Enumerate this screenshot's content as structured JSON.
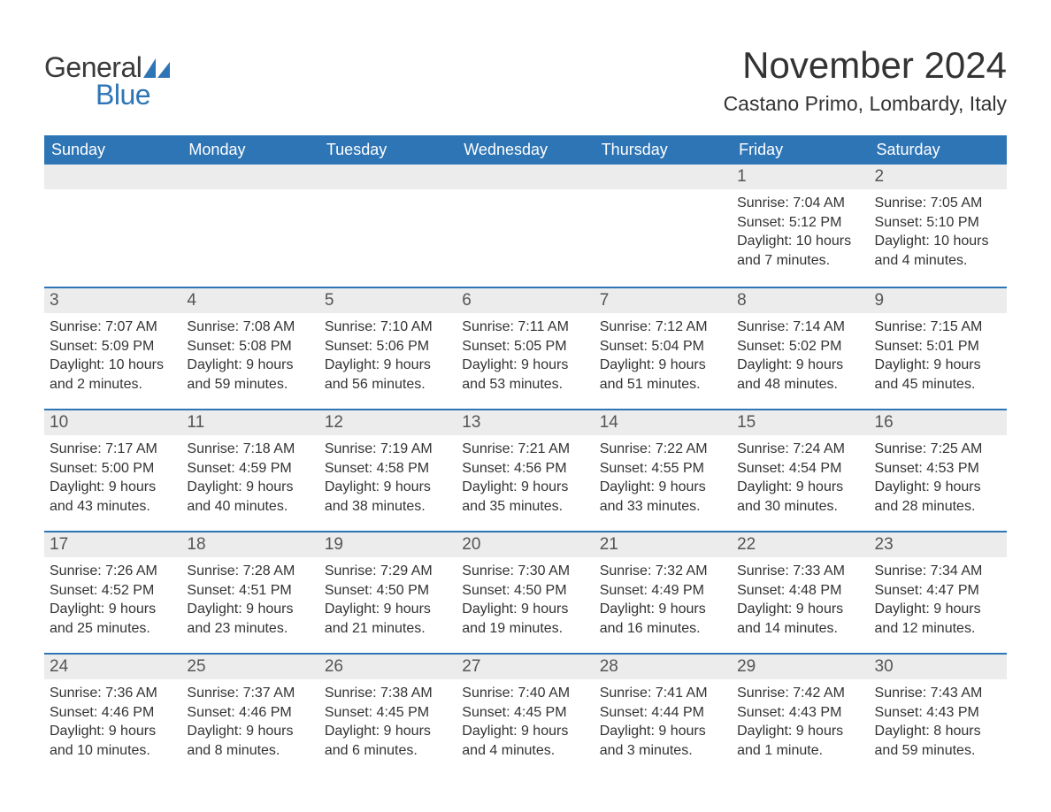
{
  "logo": {
    "text1": "General",
    "text2": "Blue",
    "shape_color": "#2e75b6"
  },
  "title": "November 2024",
  "location": "Castano Primo, Lombardy, Italy",
  "colors": {
    "header_bg": "#2e75b6",
    "header_text": "#ffffff",
    "row_border": "#2e75b6",
    "daynum_bg": "#ececec",
    "body_text": "#333333"
  },
  "weekdays": [
    "Sunday",
    "Monday",
    "Tuesday",
    "Wednesday",
    "Thursday",
    "Friday",
    "Saturday"
  ],
  "weeks": [
    [
      {
        "empty": true
      },
      {
        "empty": true
      },
      {
        "empty": true
      },
      {
        "empty": true
      },
      {
        "empty": true
      },
      {
        "day": "1",
        "sunrise": "Sunrise: 7:04 AM",
        "sunset": "Sunset: 5:12 PM",
        "daylight1": "Daylight: 10 hours",
        "daylight2": "and 7 minutes."
      },
      {
        "day": "2",
        "sunrise": "Sunrise: 7:05 AM",
        "sunset": "Sunset: 5:10 PM",
        "daylight1": "Daylight: 10 hours",
        "daylight2": "and 4 minutes."
      }
    ],
    [
      {
        "day": "3",
        "sunrise": "Sunrise: 7:07 AM",
        "sunset": "Sunset: 5:09 PM",
        "daylight1": "Daylight: 10 hours",
        "daylight2": "and 2 minutes."
      },
      {
        "day": "4",
        "sunrise": "Sunrise: 7:08 AM",
        "sunset": "Sunset: 5:08 PM",
        "daylight1": "Daylight: 9 hours",
        "daylight2": "and 59 minutes."
      },
      {
        "day": "5",
        "sunrise": "Sunrise: 7:10 AM",
        "sunset": "Sunset: 5:06 PM",
        "daylight1": "Daylight: 9 hours",
        "daylight2": "and 56 minutes."
      },
      {
        "day": "6",
        "sunrise": "Sunrise: 7:11 AM",
        "sunset": "Sunset: 5:05 PM",
        "daylight1": "Daylight: 9 hours",
        "daylight2": "and 53 minutes."
      },
      {
        "day": "7",
        "sunrise": "Sunrise: 7:12 AM",
        "sunset": "Sunset: 5:04 PM",
        "daylight1": "Daylight: 9 hours",
        "daylight2": "and 51 minutes."
      },
      {
        "day": "8",
        "sunrise": "Sunrise: 7:14 AM",
        "sunset": "Sunset: 5:02 PM",
        "daylight1": "Daylight: 9 hours",
        "daylight2": "and 48 minutes."
      },
      {
        "day": "9",
        "sunrise": "Sunrise: 7:15 AM",
        "sunset": "Sunset: 5:01 PM",
        "daylight1": "Daylight: 9 hours",
        "daylight2": "and 45 minutes."
      }
    ],
    [
      {
        "day": "10",
        "sunrise": "Sunrise: 7:17 AM",
        "sunset": "Sunset: 5:00 PM",
        "daylight1": "Daylight: 9 hours",
        "daylight2": "and 43 minutes."
      },
      {
        "day": "11",
        "sunrise": "Sunrise: 7:18 AM",
        "sunset": "Sunset: 4:59 PM",
        "daylight1": "Daylight: 9 hours",
        "daylight2": "and 40 minutes."
      },
      {
        "day": "12",
        "sunrise": "Sunrise: 7:19 AM",
        "sunset": "Sunset: 4:58 PM",
        "daylight1": "Daylight: 9 hours",
        "daylight2": "and 38 minutes."
      },
      {
        "day": "13",
        "sunrise": "Sunrise: 7:21 AM",
        "sunset": "Sunset: 4:56 PM",
        "daylight1": "Daylight: 9 hours",
        "daylight2": "and 35 minutes."
      },
      {
        "day": "14",
        "sunrise": "Sunrise: 7:22 AM",
        "sunset": "Sunset: 4:55 PM",
        "daylight1": "Daylight: 9 hours",
        "daylight2": "and 33 minutes."
      },
      {
        "day": "15",
        "sunrise": "Sunrise: 7:24 AM",
        "sunset": "Sunset: 4:54 PM",
        "daylight1": "Daylight: 9 hours",
        "daylight2": "and 30 minutes."
      },
      {
        "day": "16",
        "sunrise": "Sunrise: 7:25 AM",
        "sunset": "Sunset: 4:53 PM",
        "daylight1": "Daylight: 9 hours",
        "daylight2": "and 28 minutes."
      }
    ],
    [
      {
        "day": "17",
        "sunrise": "Sunrise: 7:26 AM",
        "sunset": "Sunset: 4:52 PM",
        "daylight1": "Daylight: 9 hours",
        "daylight2": "and 25 minutes."
      },
      {
        "day": "18",
        "sunrise": "Sunrise: 7:28 AM",
        "sunset": "Sunset: 4:51 PM",
        "daylight1": "Daylight: 9 hours",
        "daylight2": "and 23 minutes."
      },
      {
        "day": "19",
        "sunrise": "Sunrise: 7:29 AM",
        "sunset": "Sunset: 4:50 PM",
        "daylight1": "Daylight: 9 hours",
        "daylight2": "and 21 minutes."
      },
      {
        "day": "20",
        "sunrise": "Sunrise: 7:30 AM",
        "sunset": "Sunset: 4:50 PM",
        "daylight1": "Daylight: 9 hours",
        "daylight2": "and 19 minutes."
      },
      {
        "day": "21",
        "sunrise": "Sunrise: 7:32 AM",
        "sunset": "Sunset: 4:49 PM",
        "daylight1": "Daylight: 9 hours",
        "daylight2": "and 16 minutes."
      },
      {
        "day": "22",
        "sunrise": "Sunrise: 7:33 AM",
        "sunset": "Sunset: 4:48 PM",
        "daylight1": "Daylight: 9 hours",
        "daylight2": "and 14 minutes."
      },
      {
        "day": "23",
        "sunrise": "Sunrise: 7:34 AM",
        "sunset": "Sunset: 4:47 PM",
        "daylight1": "Daylight: 9 hours",
        "daylight2": "and 12 minutes."
      }
    ],
    [
      {
        "day": "24",
        "sunrise": "Sunrise: 7:36 AM",
        "sunset": "Sunset: 4:46 PM",
        "daylight1": "Daylight: 9 hours",
        "daylight2": "and 10 minutes."
      },
      {
        "day": "25",
        "sunrise": "Sunrise: 7:37 AM",
        "sunset": "Sunset: 4:46 PM",
        "daylight1": "Daylight: 9 hours",
        "daylight2": "and 8 minutes."
      },
      {
        "day": "26",
        "sunrise": "Sunrise: 7:38 AM",
        "sunset": "Sunset: 4:45 PM",
        "daylight1": "Daylight: 9 hours",
        "daylight2": "and 6 minutes."
      },
      {
        "day": "27",
        "sunrise": "Sunrise: 7:40 AM",
        "sunset": "Sunset: 4:45 PM",
        "daylight1": "Daylight: 9 hours",
        "daylight2": "and 4 minutes."
      },
      {
        "day": "28",
        "sunrise": "Sunrise: 7:41 AM",
        "sunset": "Sunset: 4:44 PM",
        "daylight1": "Daylight: 9 hours",
        "daylight2": "and 3 minutes."
      },
      {
        "day": "29",
        "sunrise": "Sunrise: 7:42 AM",
        "sunset": "Sunset: 4:43 PM",
        "daylight1": "Daylight: 9 hours",
        "daylight2": "and 1 minute."
      },
      {
        "day": "30",
        "sunrise": "Sunrise: 7:43 AM",
        "sunset": "Sunset: 4:43 PM",
        "daylight1": "Daylight: 8 hours",
        "daylight2": "and 59 minutes."
      }
    ]
  ]
}
